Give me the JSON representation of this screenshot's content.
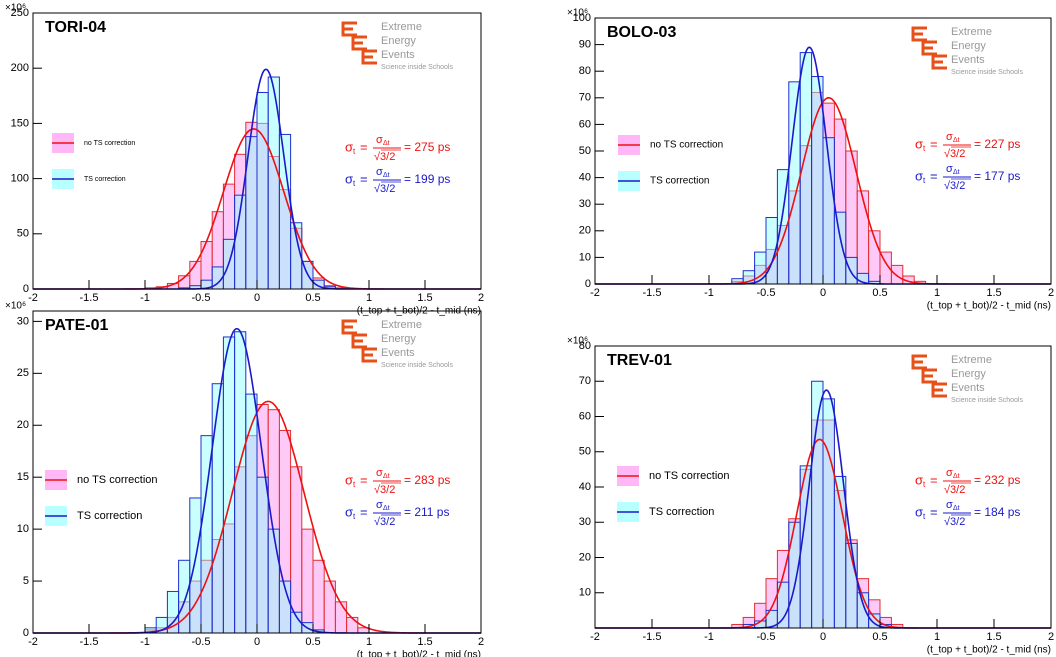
{
  "logo": {
    "line1": "Extreme",
    "line2": "Energy",
    "line3": "Events",
    "line4": "Science inside Schools"
  },
  "chart_data": [
    {
      "type": "histogram",
      "title": "TORI-04",
      "y_scale_label": "×10⁶",
      "xlabel": "(t_top + t_bot)/2 - t_mid (ns)",
      "xlim": [
        -2,
        2
      ],
      "xticks": [
        -2,
        -1.5,
        -1,
        -0.5,
        0,
        0.5,
        1,
        1.5,
        2
      ],
      "ylim": [
        0,
        250
      ],
      "yticks": [
        0,
        50,
        100,
        150,
        200,
        250
      ],
      "bins": [
        -1,
        -0.9,
        -0.8,
        -0.7,
        -0.6,
        -0.5,
        -0.4,
        -0.3,
        -0.2,
        -0.1,
        0,
        0.1,
        0.2,
        0.3,
        0.4,
        0.5,
        0.6,
        0.7,
        0.8,
        0.9,
        1
      ],
      "series": [
        {
          "name": "no TS correction",
          "color": "#e03030",
          "fill": "#ff88ee",
          "values": [
            1,
            2,
            5,
            12,
            25,
            43,
            70,
            95,
            122,
            151,
            150,
            120,
            90,
            55,
            25,
            10,
            3,
            1,
            0,
            0
          ],
          "fit": {
            "amplitude": 145,
            "mean": -0.03,
            "sigma": 0.27
          }
        },
        {
          "name": "TS correction",
          "color": "#2030d0",
          "fill": "#88ffff",
          "values": [
            0,
            0,
            0,
            1,
            3,
            8,
            20,
            45,
            85,
            138,
            178,
            192,
            140,
            60,
            25,
            8,
            2,
            0,
            0,
            0
          ],
          "fit": {
            "amplitude": 199,
            "mean": 0.08,
            "sigma": 0.16
          }
        }
      ],
      "annotations": [
        {
          "lhs": "σ",
          "lhs_sub": "t",
          "eq": "=",
          "num": "σ",
          "num_sub": "Δt",
          "den": "√3/2",
          "result": "= 275 ps",
          "color": "#ee1111"
        },
        {
          "lhs": "σ",
          "lhs_sub": "t",
          "eq": "=",
          "num": "σ",
          "num_sub": "Δt",
          "den": "√3/2",
          "result": "= 199 ps",
          "color": "#1a1acc"
        }
      ]
    },
    {
      "type": "histogram",
      "title": "BOLO-03",
      "y_scale_label": "×10⁶",
      "xlabel": "(t_top + t_bot)/2 - t_mid (ns)",
      "xlim": [
        -2,
        2
      ],
      "xticks": [
        -2,
        -1.5,
        -1,
        -0.5,
        0,
        0.5,
        1,
        1.5,
        2
      ],
      "ylim": [
        0,
        100
      ],
      "yticks": [
        0,
        10,
        20,
        30,
        40,
        50,
        60,
        70,
        80,
        90,
        100
      ],
      "bins": [
        -1,
        -0.9,
        -0.8,
        -0.7,
        -0.6,
        -0.5,
        -0.4,
        -0.3,
        -0.2,
        -0.1,
        0,
        0.1,
        0.2,
        0.3,
        0.4,
        0.5,
        0.6,
        0.7,
        0.8,
        0.9,
        1
      ],
      "series": [
        {
          "name": "no TS correction",
          "color": "#e03030",
          "fill": "#ff88ee",
          "values": [
            0,
            0,
            1,
            3,
            7,
            13,
            22,
            35,
            52,
            72,
            68,
            62,
            50,
            35,
            20,
            12,
            7,
            3,
            1,
            0
          ],
          "fit": {
            "amplitude": 70,
            "mean": 0.05,
            "sigma": 0.24
          }
        },
        {
          "name": "TS correction",
          "color": "#2030d0",
          "fill": "#88ffff",
          "values": [
            0,
            0,
            2,
            5,
            12,
            25,
            43,
            76,
            87,
            78,
            55,
            27,
            10,
            4,
            1,
            0,
            0,
            0,
            0,
            0
          ],
          "fit": {
            "amplitude": 89,
            "mean": -0.12,
            "sigma": 0.15
          }
        }
      ],
      "annotations": [
        {
          "lhs": "σ",
          "lhs_sub": "t",
          "eq": "=",
          "num": "σ",
          "num_sub": "Δt",
          "den": "√3/2",
          "result": "= 227 ps",
          "color": "#ee1111"
        },
        {
          "lhs": "σ",
          "lhs_sub": "t",
          "eq": "=",
          "num": "σ",
          "num_sub": "Δt",
          "den": "√3/2",
          "result": "= 177 ps",
          "color": "#1a1acc"
        }
      ]
    },
    {
      "type": "histogram",
      "title": "PATE-01",
      "y_scale_label": "×10⁶",
      "xlabel": "(t_top + t_bot)/2 - t_mid (ns)",
      "xlim": [
        -2,
        2
      ],
      "xticks": [
        -2,
        -1.5,
        -1,
        -0.5,
        0,
        0.5,
        1,
        1.5,
        2
      ],
      "ylim": [
        0,
        31
      ],
      "yticks": [
        0,
        5,
        10,
        15,
        20,
        25,
        30
      ],
      "bins": [
        -1,
        -0.9,
        -0.8,
        -0.7,
        -0.6,
        -0.5,
        -0.4,
        -0.3,
        -0.2,
        -0.1,
        0,
        0.1,
        0.2,
        0.3,
        0.4,
        0.5,
        0.6,
        0.7,
        0.8,
        0.9,
        1
      ],
      "series": [
        {
          "name": "no TS correction",
          "color": "#e03030",
          "fill": "#ff88ee",
          "values": [
            0.3,
            0.5,
            1.5,
            3,
            5,
            7,
            9,
            10.5,
            16,
            19,
            22,
            21.5,
            19.5,
            16,
            10,
            7,
            5,
            3,
            1.5,
            0.5
          ],
          "fit": {
            "amplitude": 22.3,
            "mean": 0.1,
            "sigma": 0.32
          }
        },
        {
          "name": "TS correction",
          "color": "#2030d0",
          "fill": "#88ffff",
          "values": [
            0.5,
            1.5,
            4,
            7,
            13,
            19,
            24,
            28.5,
            29,
            23,
            15,
            10,
            5,
            2,
            1,
            0.3,
            0,
            0,
            0,
            0
          ],
          "fit": {
            "amplitude": 29.3,
            "mean": -0.18,
            "sigma": 0.22
          }
        }
      ],
      "annotations": [
        {
          "lhs": "σ",
          "lhs_sub": "t",
          "eq": "=",
          "num": "σ",
          "num_sub": "Δt",
          "den": "√3/2",
          "result": "= 283 ps",
          "color": "#ee1111"
        },
        {
          "lhs": "σ",
          "lhs_sub": "t",
          "eq": "=",
          "num": "σ",
          "num_sub": "Δt",
          "den": "√3/2",
          "result": "= 211 ps",
          "color": "#1a1acc"
        }
      ]
    },
    {
      "type": "histogram",
      "title": "TREV-01",
      "y_scale_label": "×10⁶",
      "xlabel": "(t_top + t_bot)/2 - t_mid (ns)",
      "xlim": [
        -2,
        2
      ],
      "xticks": [
        -2,
        -1.5,
        -1,
        -0.5,
        0,
        0.5,
        1,
        1.5,
        2
      ],
      "ylim": [
        0,
        80
      ],
      "yticks": [
        10,
        20,
        30,
        40,
        50,
        60,
        70,
        80
      ],
      "bins": [
        -1,
        -0.9,
        -0.8,
        -0.7,
        -0.6,
        -0.5,
        -0.4,
        -0.3,
        -0.2,
        -0.1,
        0,
        0.1,
        0.2,
        0.3,
        0.4,
        0.5,
        0.6,
        0.7,
        0.8,
        0.9,
        1
      ],
      "series": [
        {
          "name": "no TS correction",
          "color": "#e03030",
          "fill": "#ff88ee",
          "values": [
            0,
            0,
            1,
            3,
            7,
            14,
            22,
            31,
            45,
            59,
            59,
            39,
            25,
            14,
            8,
            3,
            1,
            0,
            0,
            0
          ],
          "fit": {
            "amplitude": 53.5,
            "mean": -0.03,
            "sigma": 0.2
          }
        },
        {
          "name": "TS correction",
          "color": "#2030d0",
          "fill": "#88ffff",
          "values": [
            0,
            0,
            0,
            1,
            2,
            5,
            13,
            30,
            46,
            70,
            65,
            43,
            24,
            10,
            4,
            1,
            0,
            0,
            0,
            0
          ],
          "fit": {
            "amplitude": 67.5,
            "mean": 0.03,
            "sigma": 0.15
          }
        }
      ],
      "annotations": [
        {
          "lhs": "σ",
          "lhs_sub": "t",
          "eq": "=",
          "num": "σ",
          "num_sub": "Δt",
          "den": "√3/2",
          "result": "= 232 ps",
          "color": "#ee1111"
        },
        {
          "lhs": "σ",
          "lhs_sub": "t",
          "eq": "=",
          "num": "σ",
          "num_sub": "Δt",
          "den": "√3/2",
          "result": "= 184 ps",
          "color": "#1a1acc"
        }
      ]
    }
  ]
}
